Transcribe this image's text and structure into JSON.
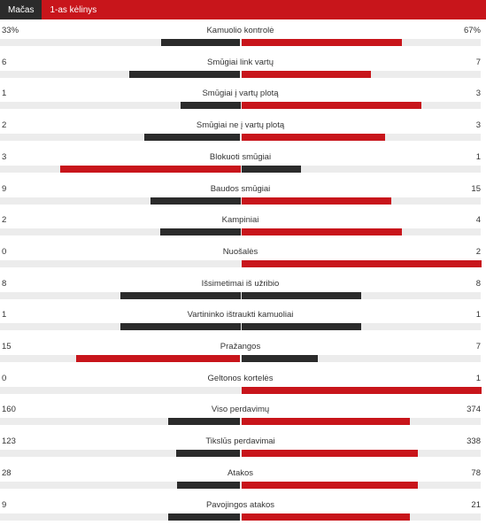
{
  "tabs": [
    "Mačas",
    "1-as kėlinys"
  ],
  "active_tab": 0,
  "colors": {
    "accent": "#c8151b",
    "leader": "#c8151b",
    "trailer": "#2b2b2b",
    "track": "#ececec"
  },
  "stats": [
    {
      "name": "Kamuolio kontrolė",
      "home": "33%",
      "away": "67%",
      "home_value": 33,
      "away_value": 67
    },
    {
      "name": "Smūgiai link vartų",
      "home": "6",
      "away": "7",
      "home_value": 6,
      "away_value": 7
    },
    {
      "name": "Smūgiai į vartų plotą",
      "home": "1",
      "away": "3",
      "home_value": 1,
      "away_value": 3
    },
    {
      "name": "Smūgiai ne į vartų plotą",
      "home": "2",
      "away": "3",
      "home_value": 2,
      "away_value": 3
    },
    {
      "name": "Blokuoti smūgiai",
      "home": "3",
      "away": "1",
      "home_value": 3,
      "away_value": 1
    },
    {
      "name": "Baudos smūgiai",
      "home": "9",
      "away": "15",
      "home_value": 9,
      "away_value": 15
    },
    {
      "name": "Kampiniai",
      "home": "2",
      "away": "4",
      "home_value": 2,
      "away_value": 4
    },
    {
      "name": "Nuošalės",
      "home": "0",
      "away": "2",
      "home_value": 0,
      "away_value": 2
    },
    {
      "name": "Išsimetimai iš užribio",
      "home": "8",
      "away": "8",
      "home_value": 8,
      "away_value": 8
    },
    {
      "name": "Vartininko ištraukti kamuoliai",
      "home": "1",
      "away": "1",
      "home_value": 1,
      "away_value": 1
    },
    {
      "name": "Pražangos",
      "home": "15",
      "away": "7",
      "home_value": 15,
      "away_value": 7
    },
    {
      "name": "Geltonos kortelės",
      "home": "0",
      "away": "1",
      "home_value": 0,
      "away_value": 1
    },
    {
      "name": "Viso perdavimų",
      "home": "160",
      "away": "374",
      "home_value": 160,
      "away_value": 374
    },
    {
      "name": "Tikslūs perdavimai",
      "home": "123",
      "away": "338",
      "home_value": 123,
      "away_value": 338
    },
    {
      "name": "Atakos",
      "home": "28",
      "away": "78",
      "home_value": 28,
      "away_value": 78
    },
    {
      "name": "Pavojingos atakos",
      "home": "9",
      "away": "21",
      "home_value": 9,
      "away_value": 21
    }
  ]
}
